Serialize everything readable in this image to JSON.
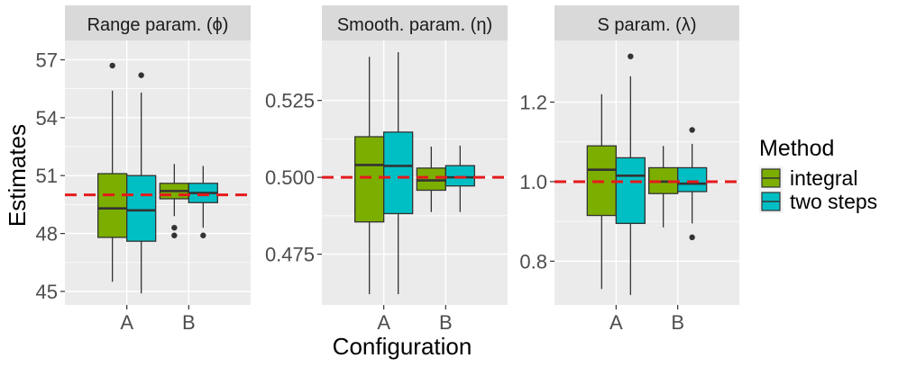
{
  "colors": {
    "integral": "#7CAE00",
    "two_steps": "#00BFC4",
    "reference": "#E41A1C",
    "panel_bg": "#EBEBEB",
    "strip_bg": "#D9D9D9",
    "grid": "#FFFFFF",
    "box_line": "#333333"
  },
  "shared": {
    "ylabel": "Estimates",
    "xlabel": "Configuration",
    "legend_title": "Method",
    "legend_items": [
      "integral",
      "two steps"
    ]
  },
  "chart_data": [
    {
      "type": "boxplot",
      "title": "Range param. (ϕ)",
      "ylim": [
        44.3,
        58.0
      ],
      "yticks": [
        45,
        48,
        51,
        54,
        57
      ],
      "ytick_labels": [
        "45",
        "48",
        "51",
        "54",
        "57"
      ],
      "categories": [
        "A",
        "B"
      ],
      "reference": 50.0,
      "series": [
        {
          "name": "integral",
          "boxes": [
            {
              "category": "A",
              "lower_whisker": 45.5,
              "q1": 47.8,
              "median": 49.3,
              "q3": 51.1,
              "upper_whisker": 55.4,
              "outliers": [
                56.7
              ]
            },
            {
              "category": "B",
              "lower_whisker": 48.9,
              "q1": 49.8,
              "median": 50.2,
              "q3": 50.6,
              "upper_whisker": 51.6,
              "outliers": [
                48.3,
                47.9
              ]
            }
          ]
        },
        {
          "name": "two steps",
          "boxes": [
            {
              "category": "A",
              "lower_whisker": 44.9,
              "q1": 47.6,
              "median": 49.2,
              "q3": 51.0,
              "upper_whisker": 55.3,
              "outliers": [
                56.2
              ]
            },
            {
              "category": "B",
              "lower_whisker": 48.3,
              "q1": 49.6,
              "median": 50.1,
              "q3": 50.6,
              "upper_whisker": 51.5,
              "outliers": [
                47.9
              ]
            }
          ]
        }
      ]
    },
    {
      "type": "boxplot",
      "title": "Smooth. param. (η)",
      "ylim": [
        0.4585,
        0.5445
      ],
      "yticks": [
        0.475,
        0.5,
        0.525
      ],
      "ytick_labels": [
        "0.475",
        "0.500",
        "0.525"
      ],
      "categories": [
        "A",
        "B"
      ],
      "reference": 0.5,
      "series": [
        {
          "name": "integral",
          "boxes": [
            {
              "category": "A",
              "lower_whisker": 0.462,
              "q1": 0.4855,
              "median": 0.504,
              "q3": 0.5132,
              "upper_whisker": 0.5392,
              "outliers": []
            },
            {
              "category": "B",
              "lower_whisker": 0.4887,
              "q1": 0.4958,
              "median": 0.499,
              "q3": 0.503,
              "upper_whisker": 0.51,
              "outliers": []
            }
          ]
        },
        {
          "name": "two steps",
          "boxes": [
            {
              "category": "A",
              "lower_whisker": 0.462,
              "q1": 0.4882,
              "median": 0.5037,
              "q3": 0.5147,
              "upper_whisker": 0.5407,
              "outliers": []
            },
            {
              "category": "B",
              "lower_whisker": 0.4887,
              "q1": 0.4972,
              "median": 0.5,
              "q3": 0.5038,
              "upper_whisker": 0.5103,
              "outliers": []
            }
          ]
        }
      ]
    },
    {
      "type": "boxplot",
      "title": "S param. (λ)",
      "ylim": [
        0.69,
        1.355
      ],
      "yticks": [
        0.8,
        1.0,
        1.2
      ],
      "ytick_labels": [
        "0.8",
        "1.0",
        "1.2"
      ],
      "categories": [
        "A",
        "B"
      ],
      "reference": 1.0,
      "series": [
        {
          "name": "integral",
          "boxes": [
            {
              "category": "A",
              "lower_whisker": 0.73,
              "q1": 0.915,
              "median": 1.03,
              "q3": 1.09,
              "upper_whisker": 1.22,
              "outliers": []
            },
            {
              "category": "B",
              "lower_whisker": 0.885,
              "q1": 0.97,
              "median": 1.0,
              "q3": 1.035,
              "upper_whisker": 1.09,
              "outliers": []
            }
          ]
        },
        {
          "name": "two steps",
          "boxes": [
            {
              "category": "A",
              "lower_whisker": 0.715,
              "q1": 0.895,
              "median": 1.015,
              "q3": 1.06,
              "upper_whisker": 1.265,
              "outliers": [
                1.315
              ]
            },
            {
              "category": "B",
              "lower_whisker": 0.895,
              "q1": 0.975,
              "median": 0.995,
              "q3": 1.035,
              "upper_whisker": 1.095,
              "outliers": [
                0.86,
                1.13
              ]
            }
          ]
        }
      ]
    }
  ]
}
